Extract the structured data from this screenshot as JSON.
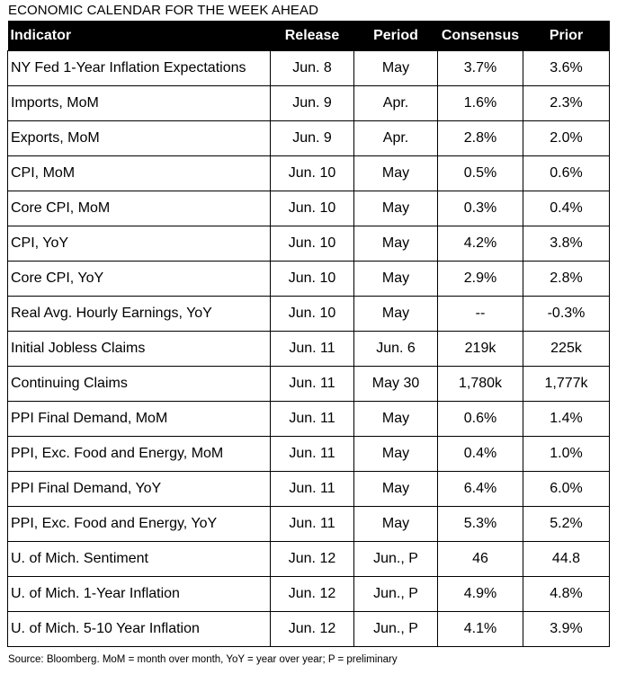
{
  "title": "ECONOMIC CALENDAR FOR THE WEEK AHEAD",
  "headers": {
    "indicator": "Indicator",
    "release": "Release",
    "period": "Period",
    "consensus": "Consensus",
    "prior": "Prior"
  },
  "rows": [
    {
      "indicator": "NY Fed 1-Year Inflation Expectations",
      "release": "Jun. 8",
      "period": "May",
      "consensus": "3.7%",
      "prior": "3.6%"
    },
    {
      "indicator": "Imports, MoM",
      "release": "Jun. 9",
      "period": "Apr.",
      "consensus": "1.6%",
      "prior": "2.3%"
    },
    {
      "indicator": "Exports, MoM",
      "release": "Jun. 9",
      "period": "Apr.",
      "consensus": "2.8%",
      "prior": "2.0%"
    },
    {
      "indicator": "CPI, MoM",
      "release": "Jun. 10",
      "period": "May",
      "consensus": "0.5%",
      "prior": "0.6%"
    },
    {
      "indicator": "Core CPI, MoM",
      "release": "Jun. 10",
      "period": "May",
      "consensus": "0.3%",
      "prior": "0.4%"
    },
    {
      "indicator": "CPI, YoY",
      "release": "Jun. 10",
      "period": "May",
      "consensus": "4.2%",
      "prior": "3.8%"
    },
    {
      "indicator": "Core CPI, YoY",
      "release": "Jun. 10",
      "period": "May",
      "consensus": "2.9%",
      "prior": "2.8%"
    },
    {
      "indicator": "Real Avg. Hourly Earnings, YoY",
      "release": "Jun. 10",
      "period": "May",
      "consensus": "--",
      "prior": "-0.3%"
    },
    {
      "indicator": "Initial Jobless Claims",
      "release": "Jun. 11",
      "period": "Jun. 6",
      "consensus": "219k",
      "prior": "225k"
    },
    {
      "indicator": "Continuing Claims",
      "release": "Jun. 11",
      "period": "May 30",
      "consensus": "1,780k",
      "prior": "1,777k"
    },
    {
      "indicator": "PPI Final Demand, MoM",
      "release": "Jun. 11",
      "period": "May",
      "consensus": "0.6%",
      "prior": "1.4%"
    },
    {
      "indicator": "PPI, Exc. Food and Energy, MoM",
      "release": "Jun. 11",
      "period": "May",
      "consensus": "0.4%",
      "prior": "1.0%"
    },
    {
      "indicator": "PPI Final Demand, YoY",
      "release": "Jun. 11",
      "period": "May",
      "consensus": "6.4%",
      "prior": "6.0%"
    },
    {
      "indicator": "PPI, Exc. Food and Energy, YoY",
      "release": "Jun. 11",
      "period": "May",
      "consensus": "5.3%",
      "prior": "5.2%"
    },
    {
      "indicator": "U. of Mich. Sentiment",
      "release": "Jun. 12",
      "period": "Jun., P",
      "consensus": "46",
      "prior": "44.8"
    },
    {
      "indicator": "U. of Mich. 1-Year Inflation",
      "release": "Jun. 12",
      "period": "Jun., P",
      "consensus": "4.9%",
      "prior": "4.8%"
    },
    {
      "indicator": "U. of Mich. 5-10 Year Inflation",
      "release": "Jun. 12",
      "period": "Jun., P",
      "consensus": "4.1%",
      "prior": "3.9%"
    }
  ],
  "source": "Source: Bloomberg. MoM = month over month, YoY = year over year; P = preliminary"
}
